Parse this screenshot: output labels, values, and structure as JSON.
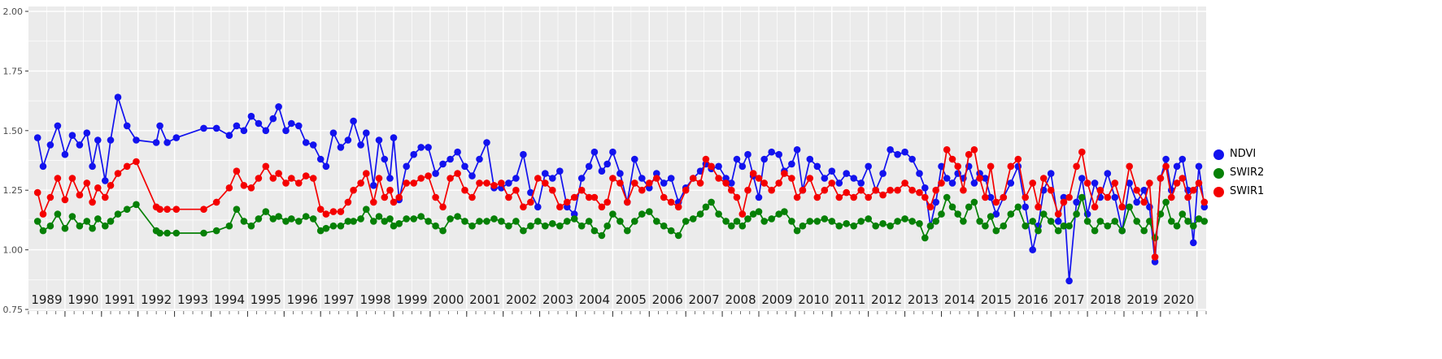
{
  "figure": {
    "background": "#FFFFFF",
    "panel_background": "#EBEBEB",
    "grid_major_color": "#FFFFFF",
    "grid_minor_color": "#FFFFFF",
    "tick_color": "#333333",
    "x_axis_text_color": "#1A1A1A",
    "y_axis_text_color": "#4D4D4D"
  },
  "legend": {
    "position": "right"
  },
  "chart_data": {
    "type": "line",
    "title": "",
    "xlabel": "",
    "ylabel": "",
    "xlim": [
      1988.5,
      2020.75
    ],
    "ylim": [
      0.75,
      2.0
    ],
    "y_ticks": [
      0.75,
      1.0,
      1.25,
      1.5,
      1.75,
      2.0
    ],
    "y_tick_labels": [
      "0.75",
      "1.00",
      "1.25",
      "1.50",
      "1.75",
      "2.00"
    ],
    "x_tick_labels": [
      "1989",
      "1990",
      "1991",
      "1992",
      "1993",
      "1994",
      "1995",
      "1996",
      "1997",
      "1998",
      "1999",
      "2000",
      "2001",
      "2002",
      "2003",
      "2004",
      "2005",
      "2006",
      "2007",
      "2008",
      "2009",
      "2010",
      "2011",
      "2012",
      "2013",
      "2014",
      "2015",
      "2016",
      "2017",
      "2018",
      "2019",
      "2020"
    ],
    "grid": true,
    "x": [
      1988.75,
      1988.9,
      1989.1,
      1989.3,
      1989.5,
      1989.7,
      1989.9,
      1990.1,
      1990.25,
      1990.4,
      1990.6,
      1990.75,
      1990.95,
      1991.2,
      1991.45,
      1992.0,
      1992.1,
      1992.3,
      1992.55,
      1993.3,
      1993.65,
      1994.0,
      1994.2,
      1994.4,
      1994.6,
      1994.8,
      1995.0,
      1995.2,
      1995.35,
      1995.55,
      1995.7,
      1995.9,
      1996.1,
      1996.3,
      1996.5,
      1996.65,
      1996.85,
      1997.05,
      1997.25,
      1997.4,
      1997.6,
      1997.75,
      1997.95,
      1998.1,
      1998.25,
      1998.4,
      1998.5,
      1998.65,
      1998.85,
      1999.05,
      1999.25,
      1999.45,
      1999.65,
      1999.85,
      2000.05,
      2000.25,
      2000.45,
      2000.65,
      2000.85,
      2001.05,
      2001.25,
      2001.45,
      2001.65,
      2001.85,
      2002.05,
      2002.25,
      2002.45,
      2002.65,
      2002.85,
      2003.05,
      2003.25,
      2003.45,
      2003.65,
      2003.85,
      2004.0,
      2004.2,
      2004.35,
      2004.5,
      2004.7,
      2004.9,
      2005.1,
      2005.3,
      2005.5,
      2005.7,
      2005.9,
      2006.1,
      2006.3,
      2006.5,
      2006.7,
      2006.9,
      2007.05,
      2007.2,
      2007.4,
      2007.6,
      2007.75,
      2007.9,
      2008.05,
      2008.2,
      2008.35,
      2008.5,
      2008.65,
      2008.85,
      2009.05,
      2009.2,
      2009.4,
      2009.55,
      2009.7,
      2009.9,
      2010.1,
      2010.3,
      2010.5,
      2010.7,
      2010.9,
      2011.1,
      2011.3,
      2011.5,
      2011.7,
      2011.9,
      2012.1,
      2012.3,
      2012.5,
      2012.7,
      2012.9,
      2013.05,
      2013.2,
      2013.35,
      2013.5,
      2013.65,
      2013.8,
      2013.95,
      2014.1,
      2014.25,
      2014.4,
      2014.55,
      2014.7,
      2014.85,
      2015.0,
      2015.2,
      2015.4,
      2015.6,
      2015.8,
      2016.0,
      2016.15,
      2016.3,
      2016.5,
      2016.7,
      2016.85,
      2017.0,
      2017.2,
      2017.35,
      2017.5,
      2017.7,
      2017.85,
      2018.05,
      2018.25,
      2018.45,
      2018.65,
      2018.85,
      2019.05,
      2019.2,
      2019.35,
      2019.5,
      2019.65,
      2019.8,
      2019.95,
      2020.1,
      2020.25,
      2020.4,
      2020.55,
      2020.7
    ],
    "series": [
      {
        "name": "NDVI",
        "color": "#1212EE",
        "values": [
          1.47,
          1.35,
          1.44,
          1.52,
          1.4,
          1.48,
          1.44,
          1.49,
          1.35,
          1.46,
          1.29,
          1.46,
          1.64,
          1.52,
          1.46,
          1.45,
          1.52,
          1.45,
          1.47,
          1.51,
          1.51,
          1.48,
          1.52,
          1.5,
          1.56,
          1.53,
          1.5,
          1.55,
          1.6,
          1.5,
          1.53,
          1.52,
          1.45,
          1.44,
          1.38,
          1.35,
          1.49,
          1.43,
          1.46,
          1.54,
          1.44,
          1.49,
          1.27,
          1.46,
          1.38,
          1.3,
          1.47,
          1.21,
          1.35,
          1.4,
          1.43,
          1.43,
          1.32,
          1.36,
          1.38,
          1.41,
          1.35,
          1.31,
          1.38,
          1.45,
          1.26,
          1.26,
          1.28,
          1.3,
          1.4,
          1.24,
          1.18,
          1.32,
          1.3,
          1.33,
          1.18,
          1.15,
          1.3,
          1.35,
          1.41,
          1.33,
          1.36,
          1.41,
          1.32,
          1.2,
          1.38,
          1.3,
          1.26,
          1.32,
          1.28,
          1.3,
          1.2,
          1.26,
          1.3,
          1.33,
          1.36,
          1.34,
          1.35,
          1.3,
          1.28,
          1.38,
          1.35,
          1.4,
          1.31,
          1.22,
          1.38,
          1.41,
          1.4,
          1.33,
          1.36,
          1.42,
          1.25,
          1.38,
          1.35,
          1.3,
          1.33,
          1.28,
          1.32,
          1.3,
          1.28,
          1.35,
          1.25,
          1.32,
          1.42,
          1.4,
          1.41,
          1.38,
          1.32,
          1.26,
          1.1,
          1.2,
          1.35,
          1.3,
          1.28,
          1.32,
          1.3,
          1.35,
          1.28,
          1.32,
          1.3,
          1.22,
          1.15,
          1.22,
          1.28,
          1.35,
          1.18,
          1.0,
          1.1,
          1.25,
          1.32,
          1.12,
          1.22,
          0.87,
          1.2,
          1.3,
          1.15,
          1.28,
          1.22,
          1.32,
          1.22,
          1.08,
          1.28,
          1.2,
          1.25,
          1.18,
          0.95,
          1.3,
          1.38,
          1.25,
          1.35,
          1.38,
          1.25,
          1.03,
          1.35,
          1.18
        ]
      },
      {
        "name": "SWIR2",
        "color": "#068006",
        "values": [
          1.12,
          1.08,
          1.1,
          1.15,
          1.09,
          1.14,
          1.1,
          1.12,
          1.09,
          1.13,
          1.1,
          1.12,
          1.15,
          1.17,
          1.19,
          1.08,
          1.07,
          1.07,
          1.07,
          1.07,
          1.08,
          1.1,
          1.17,
          1.12,
          1.1,
          1.13,
          1.16,
          1.13,
          1.14,
          1.12,
          1.13,
          1.12,
          1.14,
          1.13,
          1.08,
          1.09,
          1.1,
          1.1,
          1.12,
          1.12,
          1.13,
          1.17,
          1.12,
          1.14,
          1.12,
          1.13,
          1.1,
          1.11,
          1.13,
          1.13,
          1.14,
          1.12,
          1.1,
          1.08,
          1.13,
          1.14,
          1.12,
          1.1,
          1.12,
          1.12,
          1.13,
          1.12,
          1.1,
          1.12,
          1.08,
          1.1,
          1.12,
          1.1,
          1.11,
          1.1,
          1.12,
          1.13,
          1.1,
          1.12,
          1.08,
          1.06,
          1.1,
          1.15,
          1.12,
          1.08,
          1.12,
          1.15,
          1.16,
          1.12,
          1.1,
          1.08,
          1.06,
          1.12,
          1.13,
          1.15,
          1.18,
          1.2,
          1.15,
          1.12,
          1.1,
          1.12,
          1.1,
          1.13,
          1.15,
          1.16,
          1.12,
          1.13,
          1.15,
          1.16,
          1.12,
          1.08,
          1.1,
          1.12,
          1.12,
          1.13,
          1.12,
          1.1,
          1.11,
          1.1,
          1.12,
          1.13,
          1.1,
          1.11,
          1.1,
          1.12,
          1.13,
          1.12,
          1.11,
          1.05,
          1.1,
          1.12,
          1.15,
          1.22,
          1.18,
          1.15,
          1.12,
          1.18,
          1.2,
          1.12,
          1.1,
          1.14,
          1.08,
          1.1,
          1.15,
          1.18,
          1.1,
          1.12,
          1.08,
          1.15,
          1.12,
          1.08,
          1.1,
          1.1,
          1.15,
          1.22,
          1.12,
          1.08,
          1.12,
          1.1,
          1.12,
          1.08,
          1.18,
          1.12,
          1.08,
          1.12,
          1.05,
          1.15,
          1.2,
          1.12,
          1.1,
          1.15,
          1.12,
          1.1,
          1.13,
          1.12
        ]
      },
      {
        "name": "SWIR1",
        "color": "#F40000",
        "values": [
          1.24,
          1.15,
          1.22,
          1.3,
          1.21,
          1.3,
          1.23,
          1.28,
          1.2,
          1.26,
          1.22,
          1.27,
          1.32,
          1.35,
          1.37,
          1.18,
          1.17,
          1.17,
          1.17,
          1.17,
          1.2,
          1.26,
          1.33,
          1.27,
          1.26,
          1.3,
          1.35,
          1.3,
          1.32,
          1.28,
          1.3,
          1.28,
          1.31,
          1.3,
          1.17,
          1.15,
          1.16,
          1.16,
          1.2,
          1.25,
          1.28,
          1.32,
          1.2,
          1.3,
          1.22,
          1.25,
          1.2,
          1.22,
          1.28,
          1.28,
          1.3,
          1.31,
          1.22,
          1.18,
          1.3,
          1.32,
          1.25,
          1.22,
          1.28,
          1.28,
          1.27,
          1.28,
          1.22,
          1.25,
          1.18,
          1.2,
          1.3,
          1.28,
          1.25,
          1.18,
          1.2,
          1.22,
          1.25,
          1.22,
          1.22,
          1.18,
          1.2,
          1.3,
          1.28,
          1.2,
          1.28,
          1.25,
          1.28,
          1.3,
          1.22,
          1.2,
          1.18,
          1.25,
          1.3,
          1.28,
          1.38,
          1.35,
          1.3,
          1.28,
          1.25,
          1.22,
          1.15,
          1.25,
          1.32,
          1.3,
          1.28,
          1.25,
          1.28,
          1.32,
          1.3,
          1.22,
          1.25,
          1.3,
          1.22,
          1.25,
          1.28,
          1.22,
          1.24,
          1.22,
          1.25,
          1.22,
          1.25,
          1.23,
          1.25,
          1.25,
          1.28,
          1.25,
          1.24,
          1.22,
          1.18,
          1.25,
          1.28,
          1.42,
          1.38,
          1.35,
          1.25,
          1.4,
          1.42,
          1.3,
          1.22,
          1.35,
          1.2,
          1.22,
          1.35,
          1.38,
          1.22,
          1.28,
          1.18,
          1.3,
          1.25,
          1.15,
          1.2,
          1.22,
          1.35,
          1.41,
          1.28,
          1.18,
          1.25,
          1.22,
          1.28,
          1.18,
          1.35,
          1.25,
          1.2,
          1.28,
          0.97,
          1.3,
          1.35,
          1.22,
          1.28,
          1.3,
          1.22,
          1.25,
          1.28,
          1.2
        ]
      }
    ]
  }
}
